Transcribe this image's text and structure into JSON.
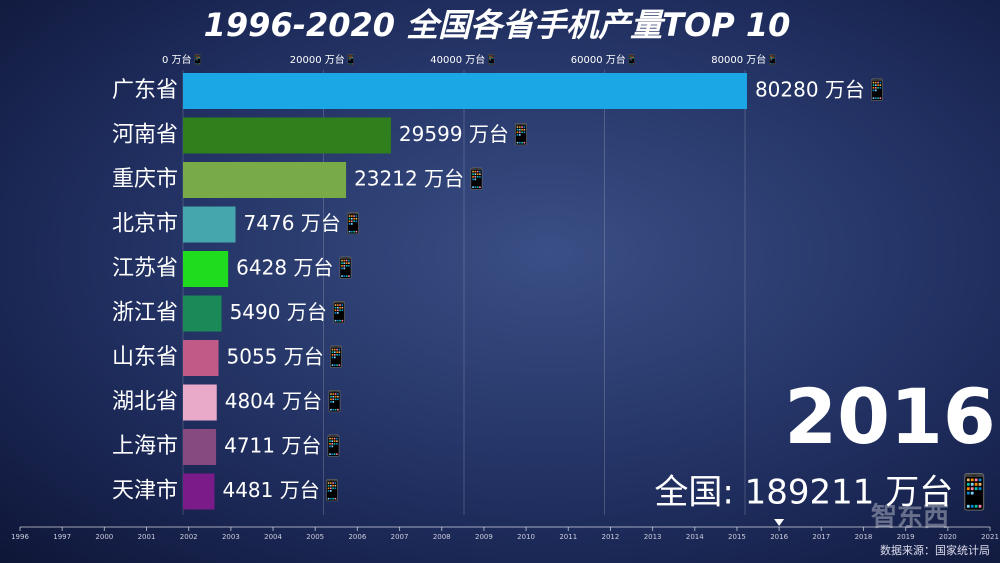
{
  "chart_data": {
    "type": "bar",
    "orientation": "horizontal",
    "title": "1996-2020 全国各省手机产量TOP 10",
    "categories": [
      "广东省",
      "河南省",
      "重庆市",
      "北京市",
      "江苏省",
      "浙江省",
      "山东省",
      "湖北省",
      "上海市",
      "天津市"
    ],
    "values": [
      80280,
      29599,
      23212,
      7476,
      6428,
      5490,
      5055,
      4804,
      4711,
      4481
    ],
    "value_labels": [
      "80280 万台📱",
      "29599 万台📱",
      "23212 万台📱",
      "7476 万台📱",
      "6428 万台📱",
      "5490 万台📱",
      "5055 万台📱",
      "4804 万台📱",
      "4711 万台📱",
      "4481 万台📱"
    ],
    "colors": [
      "#1ba6e6",
      "#2f7f1c",
      "#78ab48",
      "#45a6ae",
      "#1fdc1f",
      "#1b8a58",
      "#c15a86",
      "#e9a9c8",
      "#874a80",
      "#7b1a89"
    ],
    "xlim": [
      0,
      80000
    ],
    "xticks": [
      {
        "value": 0,
        "label": "0 万台📱"
      },
      {
        "value": 20000,
        "label": "20000 万台📱"
      },
      {
        "value": 40000,
        "label": "40000 万台📱"
      },
      {
        "value": 60000,
        "label": "60000 万台📱"
      },
      {
        "value": 80000,
        "label": "80000 万台📱"
      }
    ],
    "grid": true,
    "year": "2016",
    "total": "全国: 189211 万台📱",
    "timeline": [
      "1996",
      "1997",
      "2000",
      "2001",
      "2002",
      "2003",
      "2004",
      "2005",
      "2006",
      "2007",
      "2008",
      "2009",
      "2010",
      "2011",
      "2012",
      "2013",
      "2014",
      "2015",
      "2016",
      "2017",
      "2018",
      "2019",
      "2020",
      "2021"
    ],
    "source": "数据来源：国家统计局",
    "watermark": "智东西"
  }
}
